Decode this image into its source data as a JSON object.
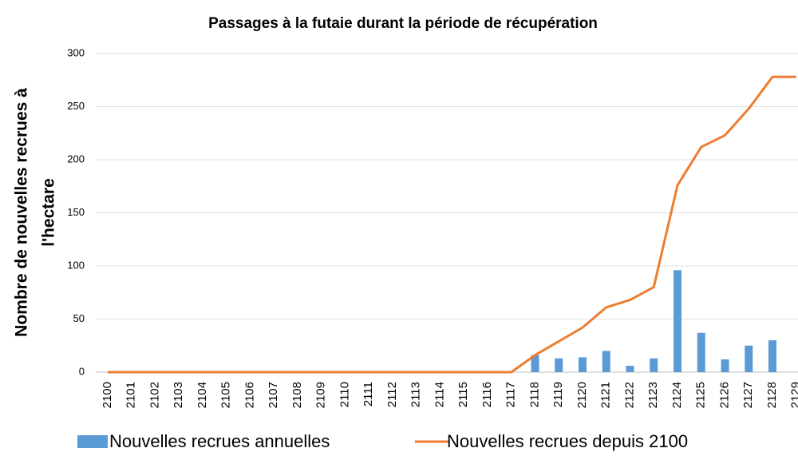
{
  "chart_data": {
    "type": "combo",
    "title": "Passages à la futaie durant la période de récupération",
    "y_label": [
      "Nombre de nouvelles recrues à",
      "l'hectare"
    ],
    "categories": [
      "2100",
      "2101",
      "2102",
      "2103",
      "2104",
      "2105",
      "2106",
      "2107",
      "2108",
      "2109",
      "2110",
      "2111",
      "2112",
      "2113",
      "2114",
      "2115",
      "2116",
      "2117",
      "2118",
      "2119",
      "2120",
      "2121",
      "2122",
      "2123",
      "2124",
      "2125",
      "2126",
      "2127",
      "2128",
      "2129"
    ],
    "series": [
      {
        "name": "Nouvelles recrues annuelles",
        "type": "bar",
        "color": "#5b9bd5",
        "values": [
          0,
          0,
          0,
          0,
          0,
          0,
          0,
          0,
          0,
          0,
          0,
          0,
          0,
          0,
          0,
          0,
          0,
          0,
          16,
          13,
          14,
          20,
          6,
          13,
          96,
          37,
          12,
          25,
          30,
          0
        ]
      },
      {
        "name": "Nouvelles recrues depuis 2100",
        "type": "line",
        "color": "#ed7d31",
        "values": [
          0,
          0,
          0,
          0,
          0,
          0,
          0,
          0,
          0,
          0,
          0,
          0,
          0,
          0,
          0,
          0,
          0,
          0,
          16,
          29,
          42,
          61,
          68,
          80,
          176,
          212,
          223,
          248,
          278,
          278
        ]
      }
    ],
    "ylim": [
      0,
      300
    ],
    "yticks": [
      0,
      50,
      100,
      150,
      200,
      250,
      300
    ],
    "grid": true,
    "legend": "bottom"
  }
}
